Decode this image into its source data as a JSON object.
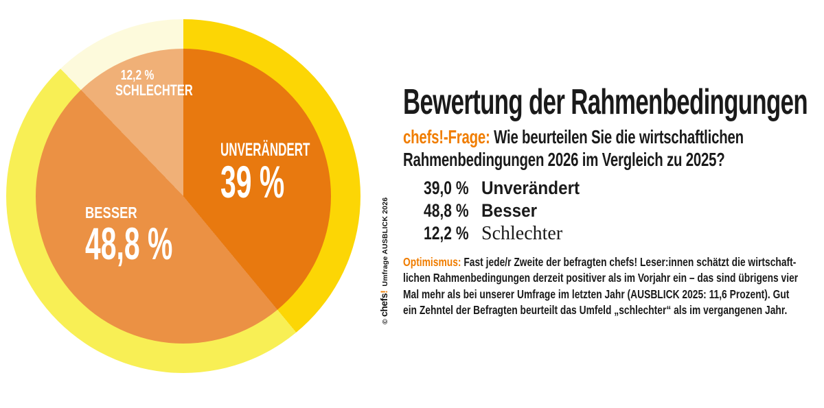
{
  "page": {
    "background": "#ffffff"
  },
  "colors": {
    "accent_orange": "#f07d00",
    "text_black": "#1a1a1a",
    "pie_label_white": "#ffffff"
  },
  "chart_data": {
    "type": "pie",
    "title": "Bewertung der Rahmenbedingungen",
    "start_angle_deg": 0,
    "direction": "clockwise",
    "legend_position": "none",
    "ring": true,
    "segments": [
      {
        "label": "UNVERÄNDERT",
        "value": 39.0,
        "display_value": "39 %",
        "slice_color": "#e8790f",
        "ring_color": "#fcd605"
      },
      {
        "label": "BESSER",
        "value": 48.8,
        "display_value": "48,8 %",
        "slice_color": "#eb9144",
        "ring_color": "#f8ef55"
      },
      {
        "label": "SCHLECHTER",
        "value": 12.2,
        "display_value": "12,2 %",
        "slice_color": "#f0b077",
        "ring_color": "#fdfadc"
      }
    ]
  },
  "header": {
    "title": "Bewertung der Rahmenbedingungen",
    "question_prefix": "chefs!-Frage:",
    "question_line1": " Wie beurteilen Sie die wirtschaftlichen",
    "question_line2": "Rahmenbedingungen 2026 im Vergleich zu 2025?"
  },
  "stats": {
    "rows": [
      {
        "value": "39,0 %",
        "label": "Unverändert"
      },
      {
        "value": "48,8 %",
        "label": "Besser"
      },
      {
        "value": "12,2 %",
        "label": "Schlechter"
      }
    ]
  },
  "note": {
    "highlight": "Optimismus:",
    "lines": [
      " Fast jede/r Zweite der befragten chefs! Leser:innen schätzt die wirtschaft-",
      "lichen Rahmenbedingungen derzeit positiver als im Vorjahr ein – das sind übrigens vier",
      "Mal mehr als bei unserer Umfrage im letzten Jahr (AUSBLICK 2025: 11,6 Prozent). Gut",
      "ein Zehntel der Befragten beurteilt das Umfeld „schlechter“ als im vergangenen Jahr."
    ]
  },
  "credit": {
    "copyright": "©",
    "brand": "chefs",
    "bang": "!",
    "text": "Umfrage AUSBLICK 2026"
  }
}
